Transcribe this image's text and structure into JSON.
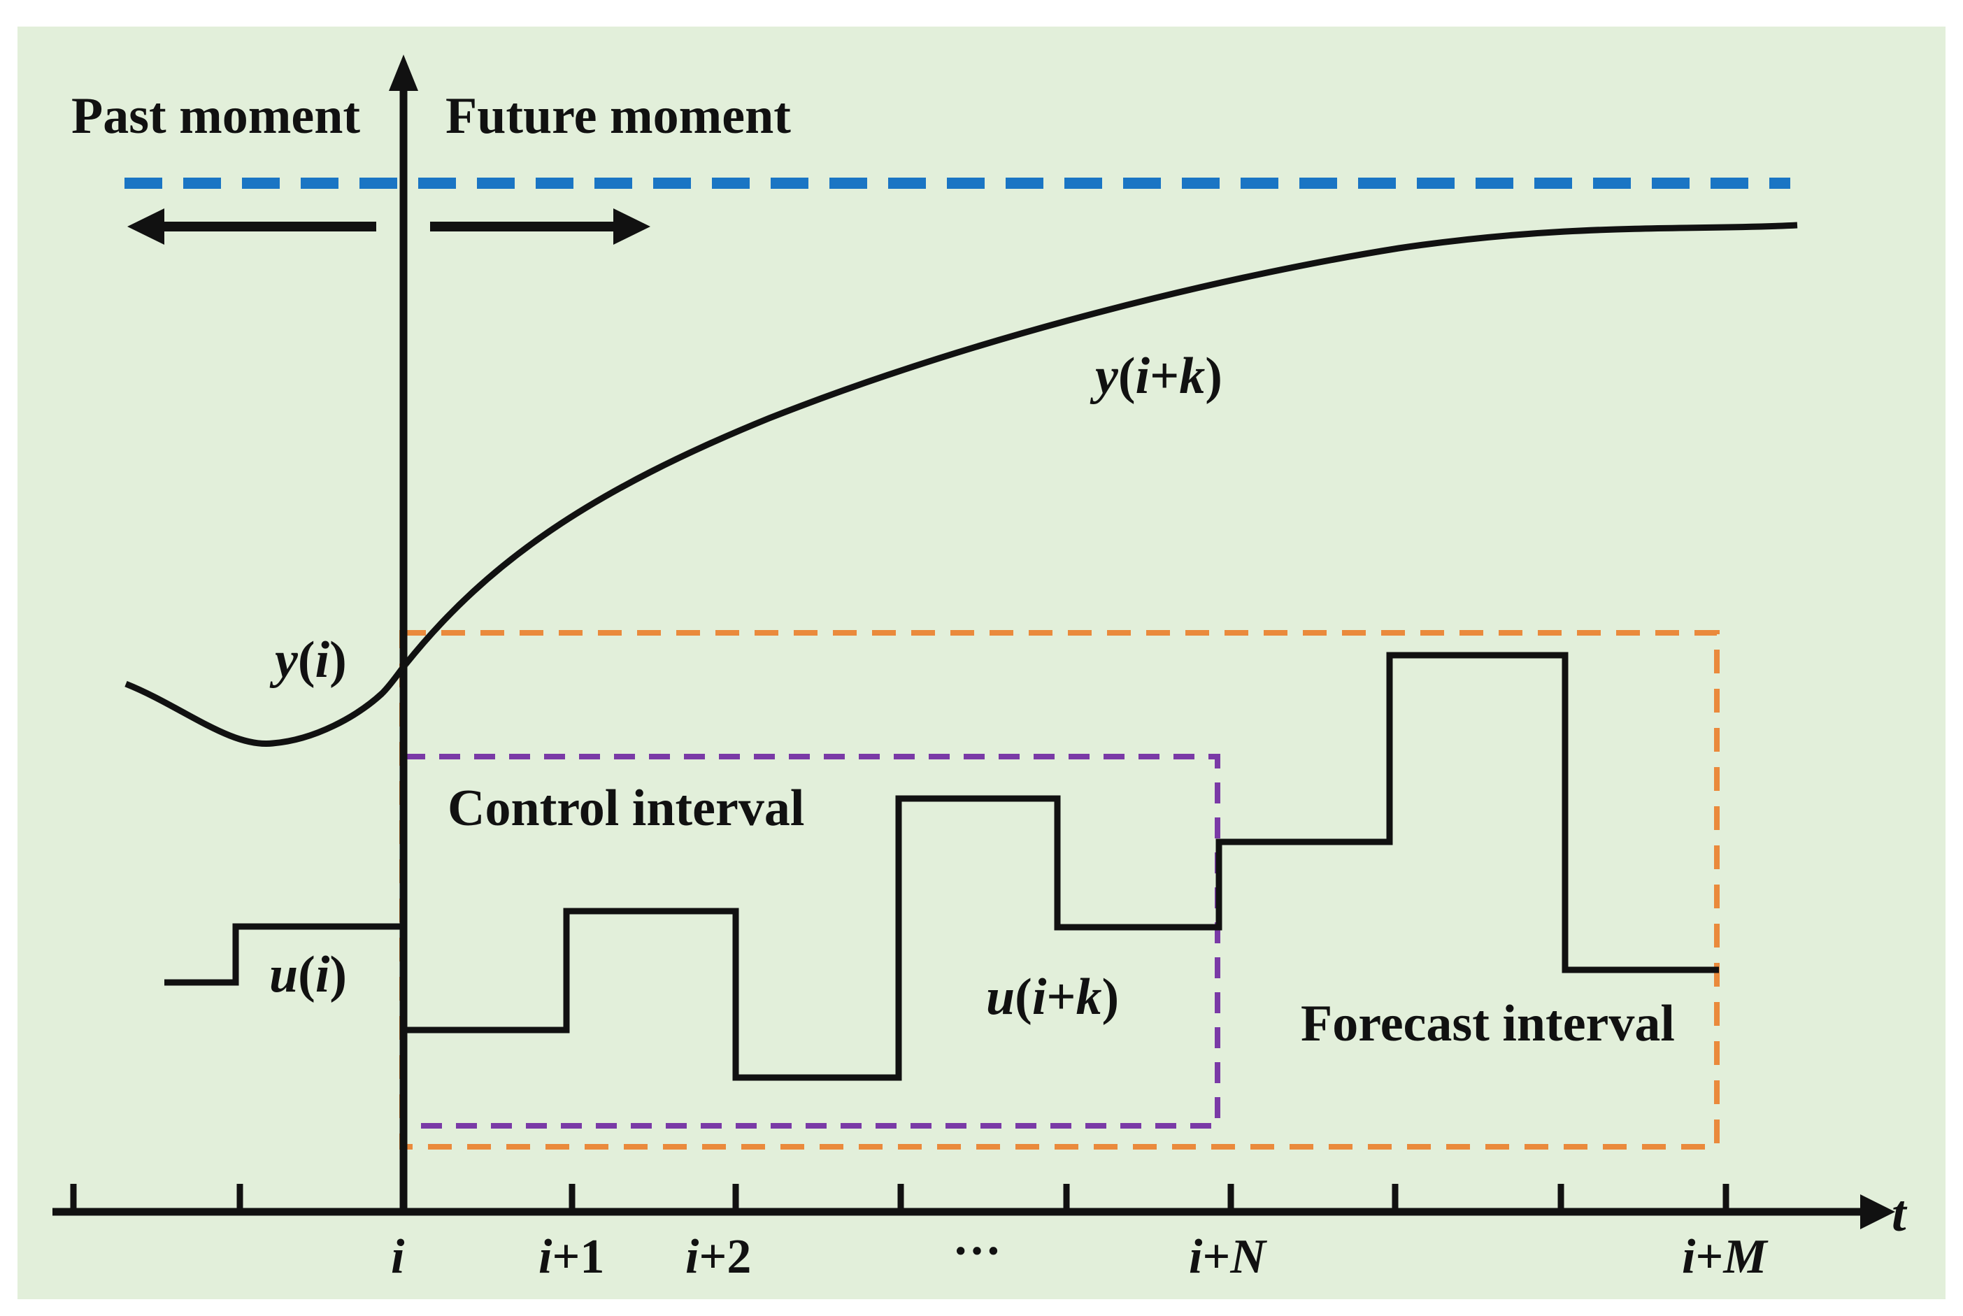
{
  "colors": {
    "background": "#e2efda",
    "ink": "#111111",
    "setpoint_dash": "#1a75c4",
    "forecast_box": "#ea8a3c",
    "control_box": "#7a3aa6"
  },
  "labels": {
    "past_moment": "Past moment",
    "future_moment": "Future moment",
    "control_interval": "Control interval",
    "forecast_interval": "Forecast interval",
    "y_i": {
      "var": "y",
      "open": "(",
      "arg": "i",
      "close": ")"
    },
    "y_ik": {
      "var": "y",
      "open": "(",
      "arg1": "i",
      "plus": "+",
      "arg2": "k",
      "close": ")"
    },
    "u_i": {
      "var": "u",
      "open": "(",
      "arg": "i",
      "close": ")"
    },
    "u_ik": {
      "var": "u",
      "open": "(",
      "arg1": "i",
      "plus": "+",
      "arg2": "k",
      "close": ")"
    },
    "t_axis": "t"
  },
  "ticks": {
    "i": {
      "base": "i"
    },
    "i1": {
      "base": "i",
      "suffix": "+1"
    },
    "i2": {
      "base": "i",
      "suffix": "+2"
    },
    "dots": "···",
    "iN": {
      "base": "i",
      "plus": "+",
      "end": "N"
    },
    "iM": {
      "base": "i",
      "plus": "+",
      "end": "M"
    }
  }
}
